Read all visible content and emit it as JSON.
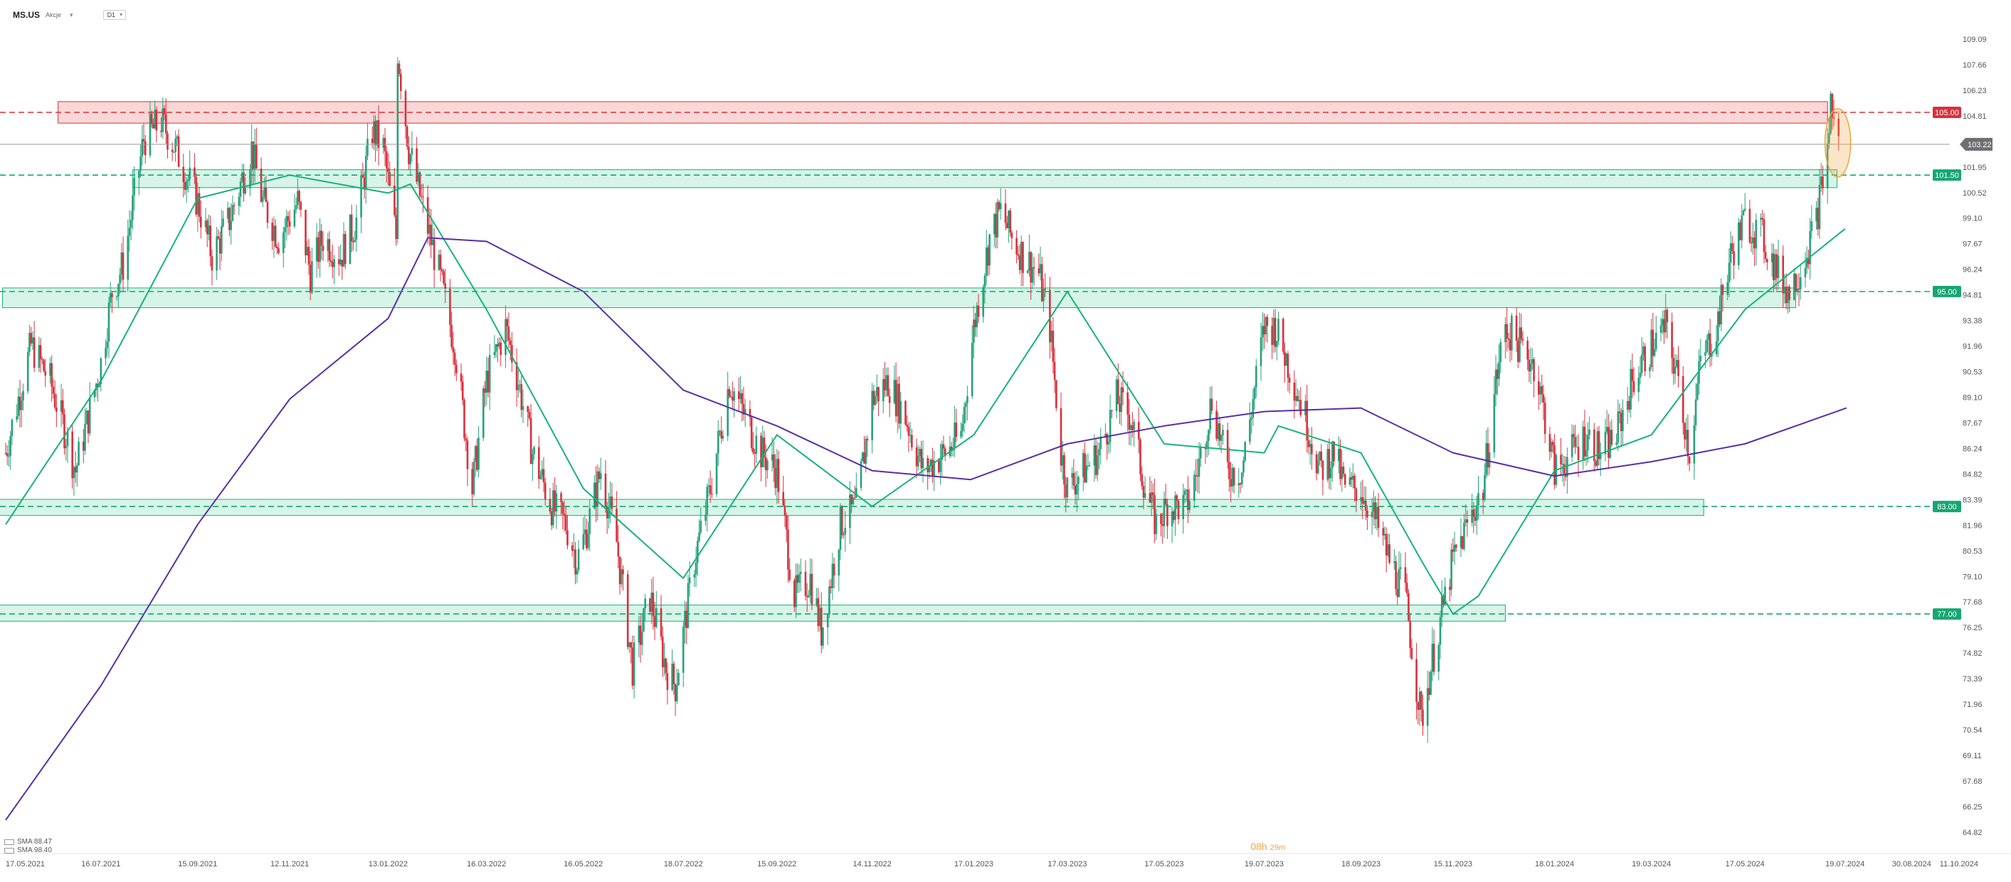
{
  "header": {
    "symbol": "MS.US",
    "market": "Akcje",
    "timeframe": "D1"
  },
  "countdown": {
    "hours": "08h",
    "minutes": "29m"
  },
  "legend": [
    {
      "label": "SMA 88.47"
    },
    {
      "label": "SMA 98.40"
    }
  ],
  "colors": {
    "up": "#26a17b",
    "down": "#d9303d",
    "sma_fast": "#17b27a",
    "sma_slow": "#5a2ea6",
    "zone_green_fill": "#c9f0e0",
    "zone_red_fill": "#f8caca",
    "price_line": "#6b6b6b",
    "highlight": "#f2a23a"
  },
  "chart_data": {
    "type": "candlestick",
    "instrument": "MS.US",
    "timeframe": "D1",
    "ylim": [
      64.82,
      110.5
    ],
    "y_ticks": [
      "109.09",
      "107.66",
      "106.23",
      "104.81",
      "103.38",
      "101.95",
      "100.52",
      "99.10",
      "97.67",
      "96.24",
      "94.81",
      "93.38",
      "91.96",
      "90.53",
      "89.10",
      "87.67",
      "86.24",
      "84.82",
      "83.39",
      "81.96",
      "80.53",
      "79.10",
      "77.68",
      "76.25",
      "74.82",
      "73.39",
      "71.96",
      "70.54",
      "69.11",
      "67.68",
      "66.25",
      "64.82"
    ],
    "x_ticks": [
      "17.05.2021",
      "16.07.2021",
      "15.09.2021",
      "12.11.2021",
      "13.01.2022",
      "16.03.2022",
      "16.05.2022",
      "18.07.2022",
      "15.09.2022",
      "14.11.2022",
      "17.01.2023",
      "17.03.2023",
      "17.05.2023",
      "19.07.2023",
      "18.09.2023",
      "15.11.2023",
      "18.01.2024",
      "19.03.2024",
      "17.05.2024",
      "19.07.2024",
      "30.08.2024",
      "11.10.2024"
    ],
    "last_price": "103.22",
    "horizontal_levels": [
      {
        "value": 105.0,
        "label": "105.00",
        "color": "#d9303d"
      },
      {
        "value": 101.5,
        "label": "101.50",
        "color": "#17a673"
      },
      {
        "value": 95.0,
        "label": "95.00",
        "color": "#17a673"
      },
      {
        "value": 83.0,
        "label": "83.00",
        "color": "#17a673"
      },
      {
        "value": 77.0,
        "label": "77.00",
        "color": "#17a673"
      }
    ],
    "zones": [
      {
        "color": "red",
        "from_date": "19.06.2021",
        "to_date": "08.07.2024",
        "low": 104.4,
        "high": 105.6
      },
      {
        "color": "green",
        "from_date": "05.08.2021",
        "to_date": "14.07.2024",
        "low": 100.8,
        "high": 101.8
      },
      {
        "color": "green",
        "from_date": "15.05.2021",
        "to_date": "18.06.2024",
        "low": 94.1,
        "high": 95.2
      },
      {
        "color": "green",
        "from_date": "13.05.2021",
        "to_date": "21.04.2024",
        "low": 82.5,
        "high": 83.4
      },
      {
        "color": "green",
        "from_date": "13.05.2021",
        "to_date": "18.12.2023",
        "low": 76.6,
        "high": 77.5
      }
    ],
    "price_path": [
      [
        "17.05.2021",
        86
      ],
      [
        "02.06.2021",
        92
      ],
      [
        "14.06.2021",
        90
      ],
      [
        "24.06.2021",
        87
      ],
      [
        "30.06.2021",
        85
      ],
      [
        "08.07.2021",
        88
      ],
      [
        "16.07.2021",
        91
      ],
      [
        "23.07.2021",
        95
      ],
      [
        "30.07.2021",
        96.5
      ],
      [
        "12.08.2021",
        103.5
      ],
      [
        "23.08.2021",
        104.5
      ],
      [
        "01.09.2021",
        103
      ],
      [
        "15.09.2021",
        100
      ],
      [
        "24.09.2021",
        97
      ],
      [
        "05.10.2021",
        99
      ],
      [
        "19.10.2021",
        103
      ],
      [
        "26.10.2021",
        100
      ],
      [
        "05.11.2021",
        98
      ],
      [
        "17.11.2021",
        100
      ],
      [
        "25.11.2021",
        96
      ],
      [
        "03.12.2021",
        98
      ],
      [
        "14.12.2021",
        97
      ],
      [
        "24.12.2021",
        99
      ],
      [
        "03.01.2022",
        104
      ],
      [
        "10.01.2022",
        103
      ],
      [
        "18.01.2022",
        98
      ],
      [
        "19.01.2022",
        108.5
      ],
      [
        "26.01.2022",
        103
      ],
      [
        "03.02.2022",
        100
      ],
      [
        "14.02.2022",
        96
      ],
      [
        "24.02.2022",
        92
      ],
      [
        "07.03.2022",
        84
      ],
      [
        "16.03.2022",
        90
      ],
      [
        "28.03.2022",
        93
      ],
      [
        "05.04.2022",
        90
      ],
      [
        "14.04.2022",
        86
      ],
      [
        "26.04.2022",
        83
      ],
      [
        "05.05.2022",
        82
      ],
      [
        "12.05.2022",
        80
      ],
      [
        "19.05.2022",
        82
      ],
      [
        "27.05.2022",
        85
      ],
      [
        "06.06.2022",
        81
      ],
      [
        "16.06.2022",
        74
      ],
      [
        "27.06.2022",
        78
      ],
      [
        "07.07.2022",
        74
      ],
      [
        "13.07.2022",
        73
      ],
      [
        "25.07.2022",
        80
      ],
      [
        "04.08.2022",
        84
      ],
      [
        "16.08.2022",
        90
      ],
      [
        "26.08.2022",
        88
      ],
      [
        "05.09.2022",
        86
      ],
      [
        "15.09.2022",
        85
      ],
      [
        "26.09.2022",
        78
      ],
      [
        "06.10.2022",
        79
      ],
      [
        "13.10.2022",
        76
      ],
      [
        "25.10.2022",
        82
      ],
      [
        "04.11.2022",
        83
      ],
      [
        "14.11.2022",
        89
      ],
      [
        "24.11.2022",
        90
      ],
      [
        "05.12.2022",
        88
      ],
      [
        "16.12.2022",
        85
      ],
      [
        "30.12.2022",
        86
      ],
      [
        "09.01.2023",
        87
      ],
      [
        "17.01.2023",
        93
      ],
      [
        "27.01.2023",
        98
      ],
      [
        "03.02.2023",
        99.5
      ],
      [
        "10.02.2023",
        98
      ],
      [
        "17.02.2023",
        97
      ],
      [
        "27.02.2023",
        96
      ],
      [
        "06.03.2023",
        93
      ],
      [
        "13.03.2023",
        86
      ],
      [
        "17.03.2023",
        84
      ],
      [
        "27.03.2023",
        85
      ],
      [
        "06.04.2023",
        86
      ],
      [
        "17.04.2023",
        89
      ],
      [
        "26.04.2023",
        88
      ],
      [
        "05.05.2023",
        84
      ],
      [
        "12.05.2023",
        82
      ],
      [
        "19.05.2023",
        83
      ],
      [
        "31.05.2023",
        83
      ],
      [
        "07.06.2023",
        85
      ],
      [
        "16.06.2023",
        89
      ],
      [
        "26.06.2023",
        85
      ],
      [
        "05.07.2023",
        85
      ],
      [
        "19.07.2023",
        93
      ],
      [
        "26.07.2023",
        93
      ],
      [
        "03.08.2023",
        91
      ],
      [
        "14.08.2023",
        88
      ],
      [
        "23.08.2023",
        85
      ],
      [
        "01.09.2023",
        86
      ],
      [
        "08.09.2023",
        84
      ],
      [
        "18.09.2023",
        84
      ],
      [
        "28.09.2023",
        82
      ],
      [
        "06.10.2023",
        80
      ],
      [
        "16.10.2023",
        78
      ],
      [
        "26.10.2023",
        71
      ],
      [
        "01.11.2023",
        74
      ],
      [
        "08.11.2023",
        77
      ],
      [
        "15.11.2023",
        80
      ],
      [
        "24.11.2023",
        82
      ],
      [
        "04.12.2023",
        84
      ],
      [
        "12.12.2023",
        90
      ],
      [
        "18.12.2023",
        93
      ],
      [
        "27.12.2023",
        92
      ],
      [
        "05.01.2024",
        91
      ],
      [
        "12.01.2024",
        88
      ],
      [
        "18.01.2024",
        85
      ],
      [
        "29.01.2024",
        86
      ],
      [
        "07.02.2024",
        87
      ],
      [
        "16.02.2024",
        86
      ],
      [
        "26.02.2024",
        87
      ],
      [
        "07.03.2024",
        90
      ],
      [
        "19.03.2024",
        92
      ],
      [
        "28.03.2024",
        93
      ],
      [
        "05.04.2024",
        90
      ],
      [
        "12.04.2024",
        86
      ],
      [
        "19.04.2024",
        91
      ],
      [
        "29.04.2024",
        93
      ],
      [
        "08.05.2024",
        97
      ],
      [
        "17.05.2024",
        99
      ],
      [
        "28.05.2024",
        98
      ],
      [
        "07.06.2024",
        96
      ],
      [
        "14.06.2024",
        95
      ],
      [
        "24.06.2024",
        97
      ],
      [
        "01.07.2024",
        99
      ],
      [
        "08.07.2024",
        103
      ],
      [
        "10.07.2024",
        105.5
      ],
      [
        "15.07.2024",
        103.22
      ]
    ],
    "sma_fast": [
      [
        "17.05.2021",
        82
      ],
      [
        "16.07.2021",
        90
      ],
      [
        "15.09.2021",
        100.2
      ],
      [
        "12.11.2021",
        101.5
      ],
      [
        "13.01.2022",
        100.5
      ],
      [
        "27.01.2022",
        101
      ],
      [
        "16.03.2022",
        94
      ],
      [
        "16.05.2022",
        84
      ],
      [
        "18.07.2022",
        79
      ],
      [
        "15.09.2022",
        87
      ],
      [
        "14.11.2022",
        83
      ],
      [
        "17.01.2023",
        87
      ],
      [
        "17.03.2023",
        95
      ],
      [
        "17.05.2023",
        86.5
      ],
      [
        "19.07.2023",
        86
      ],
      [
        "28.07.2023",
        87.5
      ],
      [
        "18.09.2023",
        86
      ],
      [
        "26.10.2023",
        80
      ],
      [
        "15.11.2023",
        77
      ],
      [
        "01.12.2023",
        78
      ],
      [
        "18.01.2024",
        85
      ],
      [
        "19.03.2024",
        87
      ],
      [
        "17.05.2024",
        94
      ],
      [
        "19.07.2024",
        98.5
      ]
    ],
    "sma_slow": [
      [
        "17.05.2021",
        65.5
      ],
      [
        "16.07.2021",
        73
      ],
      [
        "15.09.2021",
        82
      ],
      [
        "12.11.2021",
        89
      ],
      [
        "13.01.2022",
        93.5
      ],
      [
        "07.02.2022",
        98
      ],
      [
        "16.03.2022",
        97.8
      ],
      [
        "16.05.2022",
        95
      ],
      [
        "18.07.2022",
        89.5
      ],
      [
        "15.09.2022",
        87.5
      ],
      [
        "14.11.2022",
        85
      ],
      [
        "15.01.2023",
        84.5
      ],
      [
        "17.03.2023",
        86.5
      ],
      [
        "17.05.2023",
        87.5
      ],
      [
        "19.07.2023",
        88.3
      ],
      [
        "18.09.2023",
        88.5
      ],
      [
        "15.11.2023",
        86
      ],
      [
        "18.01.2024",
        84.7
      ],
      [
        "19.03.2024",
        85.5
      ],
      [
        "17.05.2024",
        86.5
      ],
      [
        "20.07.2024",
        88.5
      ]
    ],
    "highlight": {
      "center_date": "10.07.2024",
      "center_value": 103.3,
      "type": "ellipse"
    }
  }
}
